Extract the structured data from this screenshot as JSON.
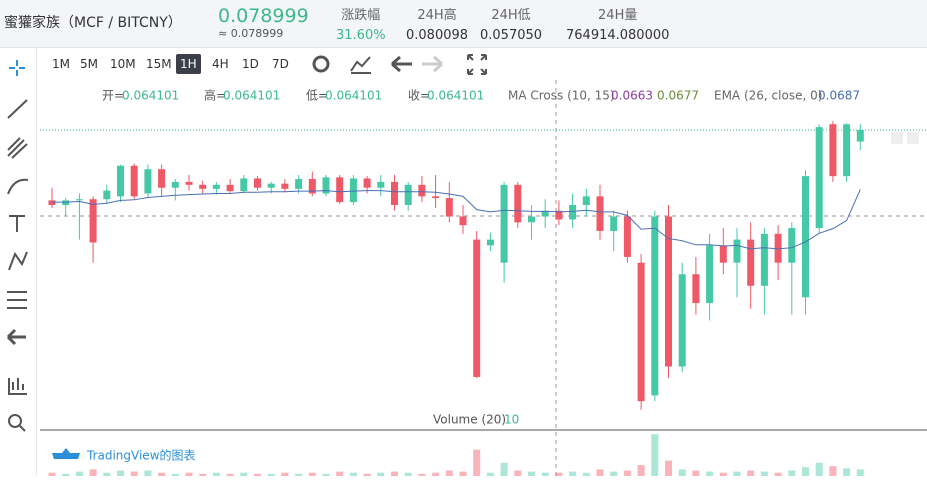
{
  "header": {
    "symbol": "蜜獾家族（MCF / BITCNY）",
    "price": "0.078999",
    "price_approx": "≈ 0.078999",
    "stats": [
      {
        "label": "涨跌幅",
        "value": "31.60%"
      },
      {
        "label": "24H高",
        "value": "0.080098"
      },
      {
        "label": "24H低",
        "value": "0.057050"
      },
      {
        "label": "24H量",
        "value": "764914.080000"
      }
    ]
  },
  "toolbar": {
    "intervals": [
      "1M",
      "5M",
      "10M",
      "15M",
      "1H",
      "4H",
      "1D",
      "7D"
    ],
    "selected": "1H"
  },
  "chart_data": {
    "type": "candlestick",
    "legend": {
      "open_label": "开=",
      "open": 0.064101,
      "high_label": "高=",
      "high": 0.064101,
      "low_label": "低=",
      "low": 0.064101,
      "close_label": "收=",
      "close": 0.064101,
      "indicators": [
        {
          "name": "MA Cross (10, 15)",
          "values": [
            0.0663,
            0.0677
          ],
          "colors": [
            "#8b3f9e",
            "#6b8e3a"
          ]
        },
        {
          "name": "EMA (26, close, 0)",
          "values": [
            0.0687
          ],
          "colors": [
            "#4a6fb5"
          ]
        }
      ],
      "volume_name": "Volume (20)",
      "volume_value": 10
    },
    "up_color": "#45c8a6",
    "down_color": "#ef5866",
    "ylim": [
      0.027,
      0.0816
    ],
    "volume_ylim": [
      0,
      40
    ],
    "open": [
      0.0668,
      0.066,
      0.0668,
      0.067,
      0.067,
      0.0675,
      0.0728,
      0.068,
      0.0722,
      0.069,
      0.07,
      0.0695,
      0.0688,
      0.0695,
      0.0684,
      0.0706,
      0.069,
      0.0697,
      0.0688,
      0.0705,
      0.068,
      0.0708,
      0.0665,
      0.0706,
      0.069,
      0.07,
      0.066,
      0.0695,
      0.0675,
      0.0672,
      0.064,
      0.06,
      0.059,
      0.056,
      0.0695,
      0.063,
      0.064,
      0.065,
      0.0635,
      0.066,
      0.0675,
      0.0615,
      0.064,
      0.056,
      0.033,
      0.064,
      0.038,
      0.054,
      0.049,
      0.059,
      0.056,
      0.06,
      0.052,
      0.061,
      0.056,
      0.05,
      0.062,
      0.08,
      0.071,
      0.077
    ],
    "high": [
      0.069,
      0.0672,
      0.068,
      0.0675,
      0.0695,
      0.073,
      0.0732,
      0.073,
      0.073,
      0.0705,
      0.0712,
      0.0702,
      0.07,
      0.0705,
      0.0712,
      0.071,
      0.07,
      0.0705,
      0.0712,
      0.0718,
      0.0712,
      0.0712,
      0.0712,
      0.071,
      0.0712,
      0.0712,
      0.07,
      0.071,
      0.0712,
      0.07,
      0.066,
      0.0615,
      0.0612,
      0.07,
      0.07,
      0.066,
      0.067,
      0.0668,
      0.068,
      0.0688,
      0.0695,
      0.065,
      0.065,
      0.0575,
      0.065,
      0.066,
      0.056,
      0.057,
      0.061,
      0.062,
      0.062,
      0.063,
      0.062,
      0.0625,
      0.063,
      0.072,
      0.08,
      0.0805,
      0.0802,
      0.08
    ],
    "low": [
      0.0655,
      0.064,
      0.06,
      0.056,
      0.0662,
      0.0665,
      0.067,
      0.0672,
      0.0675,
      0.0668,
      0.0685,
      0.068,
      0.0678,
      0.068,
      0.068,
      0.0685,
      0.068,
      0.0682,
      0.068,
      0.0675,
      0.0675,
      0.0662,
      0.066,
      0.068,
      0.0675,
      0.065,
      0.065,
      0.0665,
      0.0655,
      0.063,
      0.061,
      0.036,
      0.058,
      0.0525,
      0.062,
      0.06,
      0.062,
      0.0625,
      0.062,
      0.064,
      0.06,
      0.058,
      0.056,
      0.0305,
      0.032,
      0.036,
      0.037,
      0.047,
      0.046,
      0.054,
      0.05,
      0.048,
      0.047,
      0.053,
      0.047,
      0.047,
      0.061,
      0.07,
      0.07,
      0.0755
    ],
    "close": [
      0.066,
      0.0668,
      0.067,
      0.0595,
      0.0685,
      0.0728,
      0.0675,
      0.0722,
      0.069,
      0.07,
      0.0695,
      0.0688,
      0.0695,
      0.0684,
      0.0706,
      0.069,
      0.0697,
      0.0688,
      0.0705,
      0.068,
      0.0708,
      0.0665,
      0.0706,
      0.069,
      0.07,
      0.066,
      0.0695,
      0.0675,
      0.0672,
      0.064,
      0.0625,
      0.0362,
      0.06,
      0.0695,
      0.063,
      0.064,
      0.065,
      0.0635,
      0.066,
      0.0675,
      0.0615,
      0.064,
      0.057,
      0.032,
      0.064,
      0.038,
      0.054,
      0.049,
      0.059,
      0.056,
      0.06,
      0.052,
      0.061,
      0.056,
      0.062,
      0.071,
      0.0795,
      0.071,
      0.08,
      0.079
    ],
    "volume": [
      3,
      2,
      4,
      6,
      3,
      5,
      4,
      5,
      3,
      2,
      3,
      2,
      3,
      2,
      3,
      2,
      2,
      3,
      2,
      3,
      2,
      4,
      3,
      2,
      3,
      4,
      3,
      2,
      3,
      5,
      4,
      24,
      3,
      12,
      5,
      4,
      3,
      3,
      4,
      3,
      6,
      4,
      5,
      10,
      38,
      14,
      6,
      5,
      4,
      3,
      4,
      5,
      4,
      3,
      5,
      8,
      12,
      9,
      7,
      6
    ],
    "ema": {
      "name": "EMA",
      "color": "#4a6fb5",
      "values": [
        0.0665,
        0.0665,
        0.0666,
        0.0661,
        0.0663,
        0.0668,
        0.0669,
        0.0673,
        0.0675,
        0.0677,
        0.0678,
        0.0679,
        0.068,
        0.068,
        0.0682,
        0.0682,
        0.0683,
        0.0683,
        0.0684,
        0.0684,
        0.0685,
        0.0683,
        0.0684,
        0.0685,
        0.0685,
        0.0683,
        0.0683,
        0.0683,
        0.0682,
        0.0679,
        0.0675,
        0.0652,
        0.0648,
        0.0651,
        0.065,
        0.0649,
        0.0649,
        0.0648,
        0.0649,
        0.0651,
        0.0648,
        0.0648,
        0.0642,
        0.0618,
        0.062,
        0.0602,
        0.0598,
        0.0591,
        0.0591,
        0.0589,
        0.059,
        0.0584,
        0.0586,
        0.0584,
        0.0586,
        0.0596,
        0.0611,
        0.0619,
        0.0633,
        0.0687
      ]
    }
  },
  "footer": {
    "brand": "TradingView的图表"
  }
}
